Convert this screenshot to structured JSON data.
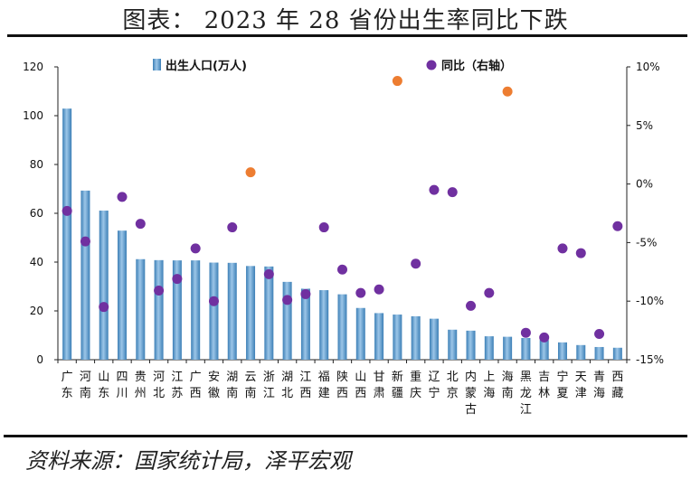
{
  "title": "图表： 2023 年 28 省份出生率同比下跌",
  "source": "资料来源：国家统计局，泽平宏观",
  "chart_data": {
    "type": "bar+scatter",
    "categories": [
      "广东",
      "河南",
      "山东",
      "四川",
      "贵州",
      "河北",
      "江苏",
      "广西",
      "安徽",
      "湖南",
      "云南",
      "浙江",
      "湖北",
      "江西",
      "福建",
      "陕西",
      "山西",
      "甘肃",
      "新疆",
      "重庆",
      "辽宁",
      "北京",
      "内蒙古",
      "上海",
      "海南",
      "黑龙江",
      "吉林",
      "宁夏",
      "天津",
      "青海",
      "西藏"
    ],
    "series": [
      {
        "name": "出生人口(万人)",
        "axis": "left",
        "kind": "bar",
        "values": [
          102.9,
          69.3,
          61.1,
          52.9,
          41.2,
          40.8,
          40.7,
          40.7,
          39.8,
          39.7,
          38.4,
          38.2,
          31.9,
          29.1,
          28.5,
          26.8,
          21.2,
          19.1,
          18.5,
          17.8,
          16.8,
          12.3,
          11.9,
          9.6,
          9.4,
          8.9,
          8.1,
          7.1,
          6.0,
          5.2,
          4.9
        ]
      },
      {
        "name": "同比（右轴）",
        "axis": "right",
        "kind": "scatter",
        "values": [
          -2.3,
          -4.9,
          -10.5,
          -1.1,
          -3.4,
          -9.1,
          -8.1,
          -5.5,
          -10.0,
          -3.7,
          1.0,
          -7.7,
          -9.9,
          -9.4,
          -3.7,
          -7.3,
          -9.3,
          -9.0,
          8.8,
          -6.8,
          -0.5,
          -0.7,
          -10.4,
          -9.3,
          7.9,
          -12.7,
          -13.1,
          -5.5,
          -5.9,
          -12.8,
          -3.6
        ]
      }
    ],
    "positive_color": "#ED7D31",
    "negative_color": "#7030A0",
    "bar_color": "#5B9BD5",
    "ylim_left": [
      0,
      120
    ],
    "ylim_right": [
      -15,
      10
    ],
    "yticks_left": [
      "0",
      "20",
      "40",
      "60",
      "80",
      "100",
      "120"
    ],
    "yticks_right": [
      "-15%",
      "-10%",
      "-5%",
      "0%",
      "5%",
      "10%"
    ]
  }
}
